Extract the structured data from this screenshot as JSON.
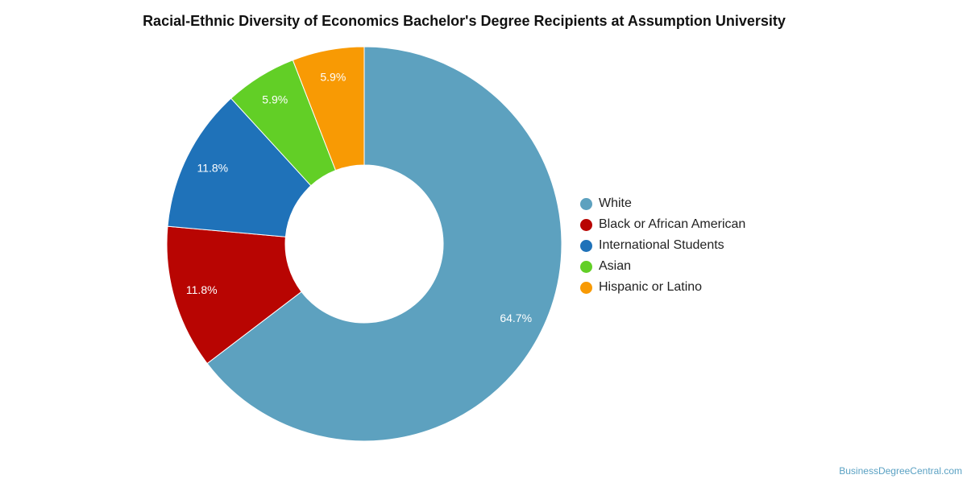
{
  "chart_data": {
    "type": "pie",
    "title": "Racial-Ethnic Diversity of Economics Bachelor's Degree Recipients at Assumption University",
    "style": "donut",
    "legend_position": "right",
    "slices": [
      {
        "label": "White",
        "value": 64.7,
        "display": "64.7%",
        "color": "#5da1bf"
      },
      {
        "label": "Black or African American",
        "value": 11.8,
        "display": "11.8%",
        "color": "#b80502"
      },
      {
        "label": "International Students",
        "value": 11.8,
        "display": "11.8%",
        "color": "#1f72b9"
      },
      {
        "label": "Asian",
        "value": 5.9,
        "display": "5.9%",
        "color": "#62cf26"
      },
      {
        "label": "Hispanic or Latino",
        "value": 5.9,
        "display": "5.9%",
        "color": "#f89a04"
      }
    ]
  },
  "watermark": "BusinessDegreeCentral.com"
}
